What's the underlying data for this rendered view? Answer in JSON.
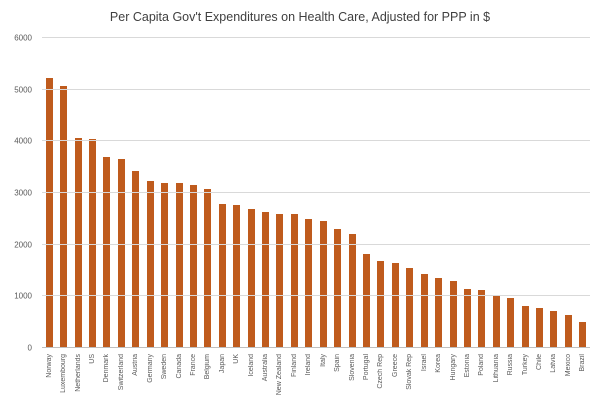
{
  "chart_data": {
    "type": "bar",
    "title": "Per Capita Gov't Expenditures on Health Care, Adjusted for PPP in $",
    "categories": [
      "Norway",
      "Luxembourg",
      "Netherlands",
      "US",
      "Denmark",
      "Switzerland",
      "Austria",
      "Germany",
      "Sweden",
      "Canada",
      "France",
      "Belgium",
      "Japan",
      "UK",
      "Iceland",
      "Australia",
      "New Zealand",
      "Finland",
      "Ireland",
      "Italy",
      "Spain",
      "Slovenia",
      "Portugal",
      "Czech Rep",
      "Greece",
      "Slovak Rep",
      "Israel",
      "Korea",
      "Hungary",
      "Estonia",
      "Poland",
      "Lithuania",
      "Russia",
      "Turkey",
      "Chile",
      "Latvia",
      "Mexico",
      "Brazil"
    ],
    "values": [
      5230,
      5080,
      4060,
      4040,
      3700,
      3650,
      3420,
      3230,
      3200,
      3190,
      3150,
      3080,
      2790,
      2770,
      2690,
      2640,
      2600,
      2590,
      2500,
      2460,
      2310,
      2210,
      1810,
      1690,
      1650,
      1540,
      1440,
      1350,
      1290,
      1150,
      1120,
      1020,
      960,
      810,
      770,
      710,
      640,
      500
    ],
    "xlabel": "",
    "ylabel": "",
    "ylim": [
      0,
      6000
    ],
    "ytick_step": 1000,
    "yticks": [
      "0",
      "1000",
      "2000",
      "3000",
      "4000",
      "5000",
      "6000"
    ],
    "grid": true,
    "legend": "none",
    "bar_color": "#bf5b1d",
    "gridline_color": "#d9d9d9",
    "text_color": "#595959",
    "title_color": "#404040"
  }
}
